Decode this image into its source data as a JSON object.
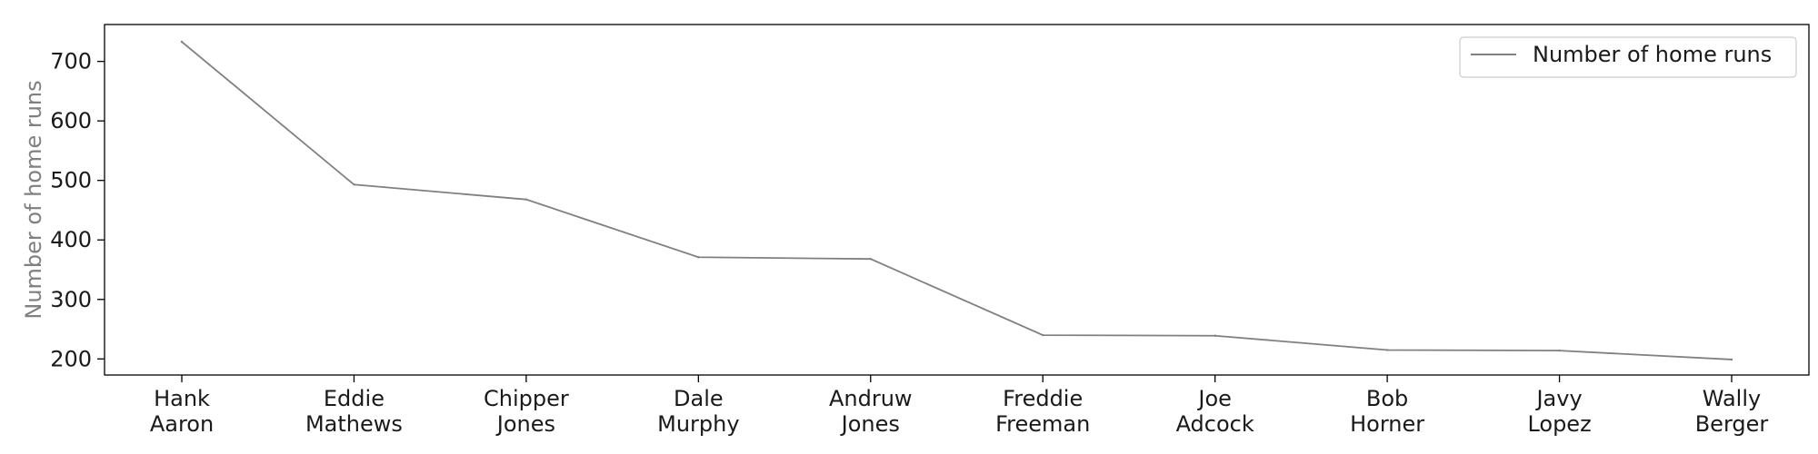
{
  "chart_data": {
    "type": "line",
    "categories": [
      [
        "Hank",
        "Aaron"
      ],
      [
        "Eddie",
        "Mathews"
      ],
      [
        "Chipper",
        "Jones"
      ],
      [
        "Dale",
        "Murphy"
      ],
      [
        "Andruw",
        "Jones"
      ],
      [
        "Freddie",
        "Freeman"
      ],
      [
        "Joe",
        "Adcock"
      ],
      [
        "Bob",
        "Horner"
      ],
      [
        "Javy",
        "Lopez"
      ],
      [
        "Wally",
        "Berger"
      ]
    ],
    "series": [
      {
        "name": "Number of home runs",
        "values": [
          733,
          493,
          468,
          371,
          368,
          240,
          239,
          215,
          214,
          199
        ],
        "color": "#808080"
      }
    ],
    "title": "",
    "xlabel": "",
    "ylabel": "Number of home runs",
    "ylim": [
      173,
      762
    ],
    "yticks": [
      200,
      300,
      400,
      500,
      600,
      700
    ],
    "grid": false,
    "legend_position": "top-right"
  }
}
